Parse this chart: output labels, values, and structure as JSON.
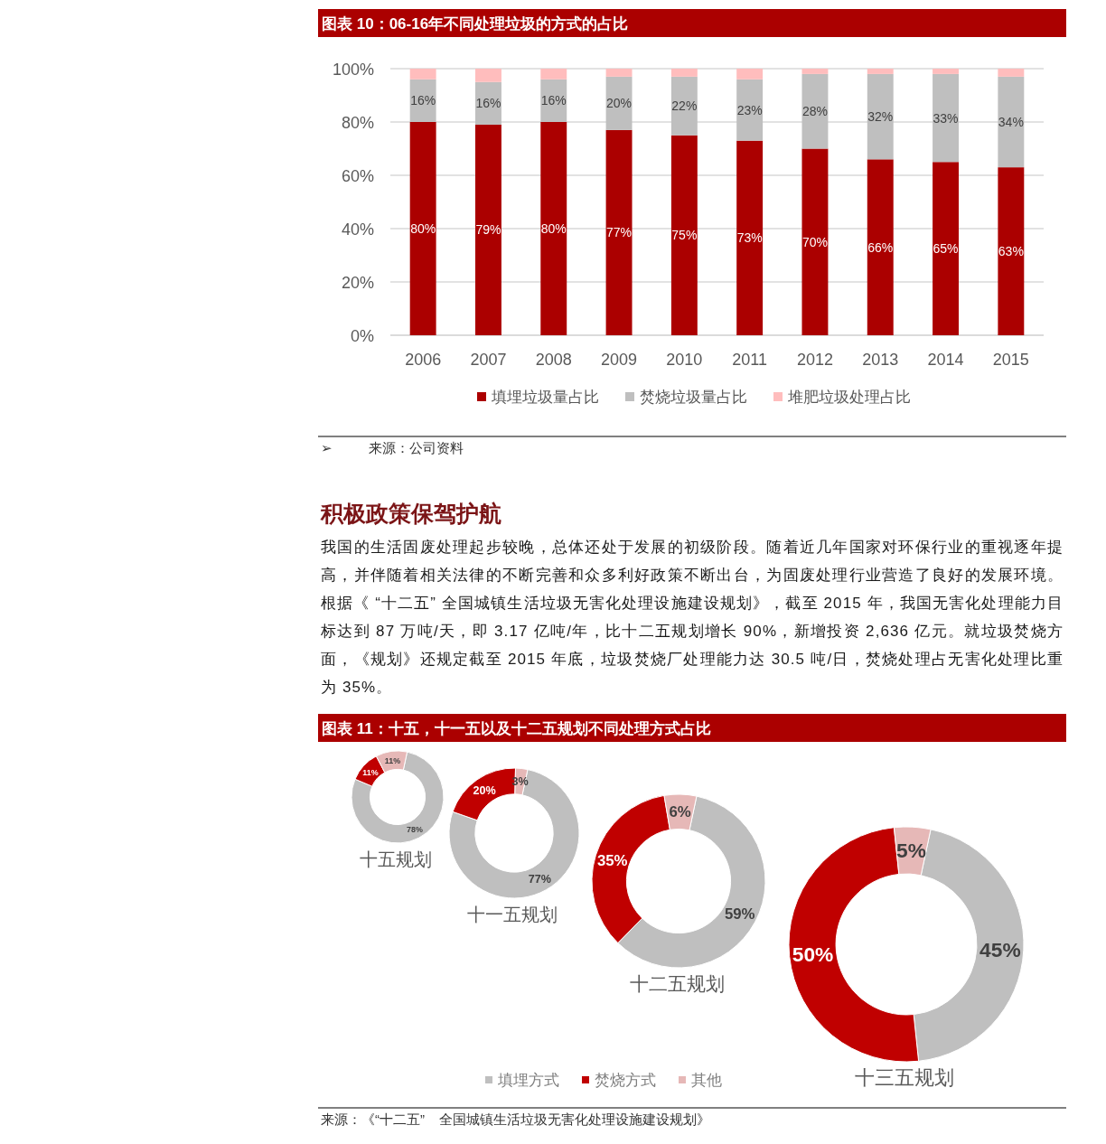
{
  "chart_data": [
    {
      "type": "bar",
      "stacked": true,
      "title": "图表 10：06-16年不同处理垃圾的方式的占比",
      "categories": [
        "2006",
        "2007",
        "2008",
        "2009",
        "2010",
        "2011",
        "2012",
        "2013",
        "2014",
        "2015"
      ],
      "series": [
        {
          "name": "填埋垃圾量占比",
          "color": "#ab0000",
          "values": [
            80,
            79,
            80,
            77,
            75,
            73,
            70,
            66,
            65,
            63
          ],
          "value_labels": [
            "80%",
            "79%",
            "80%",
            "77%",
            "75%",
            "73%",
            "70%",
            "66%",
            "65%",
            "63%"
          ]
        },
        {
          "name": "焚烧垃圾量占比",
          "color": "#bfbfbf",
          "values": [
            16,
            16,
            16,
            20,
            22,
            23,
            28,
            32,
            33,
            34
          ],
          "value_labels": [
            "16%",
            "16%",
            "16%",
            "20%",
            "22%",
            "23%",
            "28%",
            "32%",
            "33%",
            "34%"
          ]
        },
        {
          "name": "堆肥垃圾处理占比",
          "color": "#ffbdbd",
          "values": [
            4,
            5,
            4,
            3,
            3,
            4,
            2,
            2,
            2,
            3
          ]
        }
      ],
      "ylim": [
        0,
        100
      ],
      "yticks": [
        {
          "value": 0,
          "label": "0%"
        },
        {
          "value": 20,
          "label": "20%"
        },
        {
          "value": 40,
          "label": "40%"
        },
        {
          "value": 60,
          "label": "60%"
        },
        {
          "value": 80,
          "label": "80%"
        },
        {
          "value": 100,
          "label": "100%"
        }
      ],
      "grid": "y",
      "legend": "bottom",
      "annotations": [
        "➢ 来源：公司资料"
      ]
    },
    {
      "type": "other",
      "title": "积极政策保驾护航",
      "annotations": [
        "我国的生活固废处理起步较晚，总体还处于发展的初级阶段。随着近几年国家对环保行业的重视逐年提高，并伴随着相关法律的不断完善和众多利好政策不断出台，为固废处理行业营造了良好的发展环境。根据《 “十二五” 全国城镇生活垃圾无害化处理设施建设规划》，截至 2015 年，我国无害化处理能力目标达到 87 万吨/天，即 3.17 亿吨/年，比十二五规划增长 90%，新增投资 2,636 亿元。就垃圾焚烧方面，《规划》还规定截至 2015 年底，垃圾焚烧厂处理能力达 30.5 吨/日，焚烧处理占无害化处理比重为 35%。"
      ]
    },
    {
      "type": "donut",
      "title": "图表 11：十五，十一五以及十二五规划不同处理方式占比",
      "categories": [
        "填埋方式",
        "焚烧方式",
        "其他"
      ],
      "colors": [
        "#bfbfbf",
        "#c00000",
        "#e6b8b7"
      ],
      "series": [
        {
          "name": "十五规划",
          "values": [
            78,
            11,
            11
          ],
          "value_labels": [
            "78%",
            "11%",
            "11%"
          ]
        },
        {
          "name": "十一五规划",
          "values": [
            77,
            20,
            3
          ],
          "value_labels": [
            "77%",
            "20%",
            "3%"
          ]
        },
        {
          "name": "十二五规划",
          "values": [
            59,
            35,
            6
          ],
          "value_labels": [
            "59%",
            "35%",
            "6%"
          ]
        },
        {
          "name": "十三五规划",
          "values": [
            45,
            50,
            5
          ],
          "value_labels": [
            "45%",
            "50%",
            "5%"
          ]
        }
      ],
      "legend": "bottom",
      "annotations": [
        "来源：《“十二五” 全国城镇生活垃圾无害化处理设施建设规划》"
      ]
    }
  ]
}
